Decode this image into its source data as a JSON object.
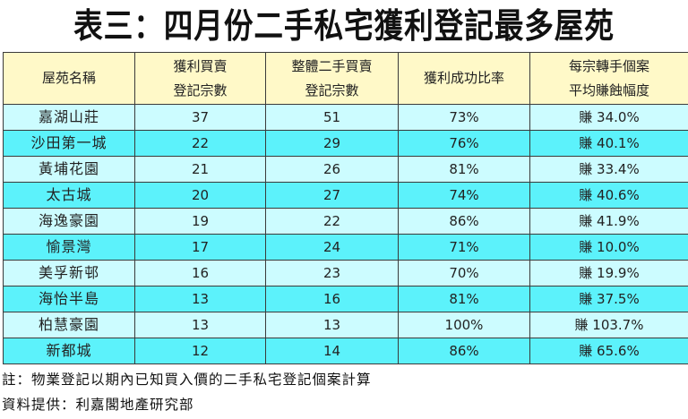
{
  "title": "表三：四月份二手私宅獲利登記最多屋苑",
  "colors": {
    "header_bg": "#fff9c8",
    "row_light": "#ccfcff",
    "row_dark": "#5cf2fb",
    "border": "#3a3a3a"
  },
  "table": {
    "headers": [
      {
        "line1": "屋苑名稱",
        "line2": ""
      },
      {
        "line1": "獲利買賣",
        "line2": "登記宗數"
      },
      {
        "line1": "整體二手買賣",
        "line2": "登記宗數"
      },
      {
        "line1": "獲利成功比率",
        "line2": ""
      },
      {
        "line1": "每宗轉手個案",
        "line2": "平均賺蝕幅度"
      }
    ],
    "rows": [
      {
        "estate": "嘉湖山莊",
        "profit_count": "37",
        "total_count": "51",
        "success_rate": "73%",
        "avg_change": "賺 34.0%"
      },
      {
        "estate": "沙田第一城",
        "profit_count": "22",
        "total_count": "29",
        "success_rate": "76%",
        "avg_change": "賺 40.1%"
      },
      {
        "estate": "黃埔花園",
        "profit_count": "21",
        "total_count": "26",
        "success_rate": "81%",
        "avg_change": "賺 33.4%"
      },
      {
        "estate": "太古城",
        "profit_count": "20",
        "total_count": "27",
        "success_rate": "74%",
        "avg_change": "賺 40.6%"
      },
      {
        "estate": "海逸豪園",
        "profit_count": "19",
        "total_count": "22",
        "success_rate": "86%",
        "avg_change": "賺 41.9%"
      },
      {
        "estate": "愉景灣",
        "profit_count": "17",
        "total_count": "24",
        "success_rate": "71%",
        "avg_change": "賺 10.0%"
      },
      {
        "estate": "美孚新邨",
        "profit_count": "16",
        "total_count": "23",
        "success_rate": "70%",
        "avg_change": "賺 19.9%"
      },
      {
        "estate": "海怡半島",
        "profit_count": "13",
        "total_count": "16",
        "success_rate": "81%",
        "avg_change": "賺 37.5%"
      },
      {
        "estate": "柏慧豪園",
        "profit_count": "13",
        "total_count": "13",
        "success_rate": "100%",
        "avg_change": "賺 103.7%"
      },
      {
        "estate": "新都城",
        "profit_count": "12",
        "total_count": "14",
        "success_rate": "86%",
        "avg_change": "賺 65.6%"
      }
    ]
  },
  "notes": {
    "footnote": "註：物業登記以期內已知買入價的二手私宅登記個案計算",
    "source": "資料提供：利嘉閣地產研究部"
  }
}
